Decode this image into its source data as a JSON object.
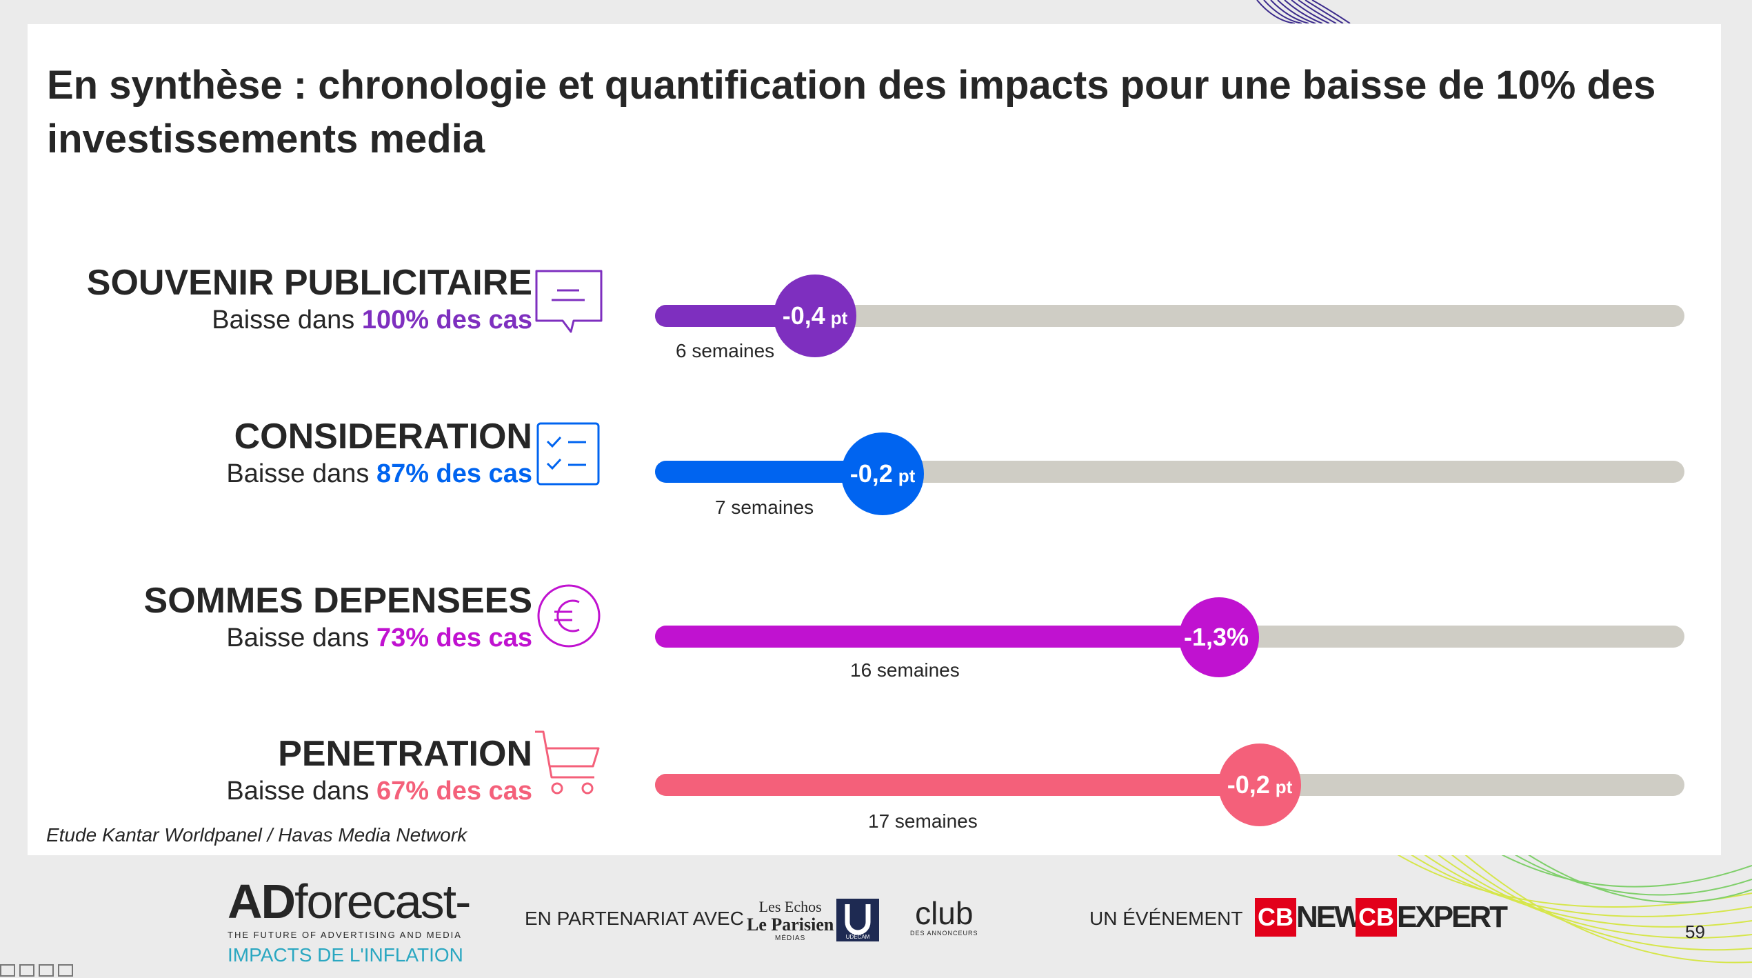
{
  "title": "En synthèse : chronologie et quantification des impacts pour une baisse de 10% des investissements media",
  "rows": [
    {
      "label": "SOUVENIR PUBLICITAIRE",
      "sub_prefix": "Baisse dans ",
      "pct": "100% des cas",
      "value": "-0,4",
      "unit": "pt",
      "weeks": "6 semaines",
      "color": "#7e2fbf",
      "icon": "speech-bubble-icon"
    },
    {
      "label": "CONSIDERATION",
      "sub_prefix": "Baisse dans ",
      "pct": "87% des cas",
      "value": "-0,2",
      "unit": "pt",
      "weeks": "7 semaines",
      "color": "#0064f0",
      "icon": "checklist-icon"
    },
    {
      "label": "SOMMES DEPENSEES",
      "sub_prefix": "Baisse dans ",
      "pct": "73% des cas",
      "value": "-1,3%",
      "unit": "",
      "weeks": "16 semaines",
      "color": "#c012d0",
      "icon": "euro-icon"
    },
    {
      "label": "PENETRATION",
      "sub_prefix": "Baisse dans ",
      "pct": "67% des cas",
      "value": "-0,2",
      "unit": "pt",
      "weeks": "17 semaines",
      "color": "#f4607a",
      "icon": "cart-icon"
    }
  ],
  "source": "Etude Kantar Worldpanel / Havas Media Network",
  "footer": {
    "brand_ad": "AD",
    "brand_forecast": "forecast-",
    "brand_tagline": "THE FUTURE OF ADVERTISING AND MEDIA",
    "brand_sub": "IMPACTS DE L'INFLATION",
    "partner_label": "EN PARTENARIAT AVEC",
    "lesechos_l1": "Les Echos",
    "lesechos_l2": "Le Parisien",
    "lesechos_l3": "MÉDIAS",
    "udecam": "UDECAM",
    "club": "club",
    "club_sub": "DES ANNONCEURS",
    "event_label": "UN ÉVÉNEMENT",
    "cbnews_mark": "CB",
    "cbnews_word": "NEWS",
    "cbexpert_mark": "CB",
    "cbexpert_word": "EXPERT",
    "page_number": "59"
  }
}
